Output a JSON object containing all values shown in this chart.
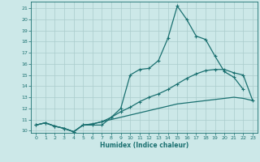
{
  "xlabel": "Humidex (Indice chaleur)",
  "ylabel": "",
  "background_color": "#cce8e8",
  "grid_color": "#aacccc",
  "line_color": "#1a7070",
  "xlim": [
    -0.5,
    23.5
  ],
  "ylim": [
    9.8,
    21.6
  ],
  "xticks": [
    0,
    1,
    2,
    3,
    4,
    5,
    6,
    7,
    8,
    9,
    10,
    11,
    12,
    13,
    14,
    15,
    16,
    17,
    18,
    19,
    20,
    21,
    22,
    23
  ],
  "yticks": [
    10,
    11,
    12,
    13,
    14,
    15,
    16,
    17,
    18,
    19,
    20,
    21
  ],
  "lines": [
    {
      "x": [
        0,
        1,
        2,
        3,
        4,
        5,
        6,
        7,
        8,
        9,
        10,
        11,
        12,
        13,
        14,
        15,
        16,
        17,
        18,
        19,
        20,
        21,
        22
      ],
      "y": [
        10.5,
        10.7,
        10.4,
        10.2,
        9.9,
        10.5,
        10.5,
        10.5,
        11.2,
        12.0,
        15.0,
        15.5,
        15.6,
        16.3,
        18.3,
        21.2,
        20.0,
        18.5,
        18.2,
        16.7,
        15.3,
        14.8,
        13.7
      ]
    },
    {
      "x": [
        0,
        1,
        2,
        3,
        4,
        5,
        6,
        7,
        8,
        9,
        10,
        11,
        12,
        13,
        14,
        15,
        16,
        17,
        18,
        19,
        20,
        21,
        22,
        23
      ],
      "y": [
        10.5,
        10.7,
        10.4,
        10.2,
        9.9,
        10.5,
        10.6,
        10.8,
        11.2,
        11.7,
        12.1,
        12.6,
        13.0,
        13.3,
        13.7,
        14.2,
        14.7,
        15.1,
        15.4,
        15.5,
        15.5,
        15.2,
        15.0,
        12.7
      ]
    },
    {
      "x": [
        0,
        1,
        2,
        3,
        4,
        5,
        6,
        7,
        8,
        9,
        10,
        11,
        12,
        13,
        14,
        15,
        16,
        17,
        18,
        19,
        20,
        21,
        22,
        23
      ],
      "y": [
        10.5,
        10.7,
        10.4,
        10.2,
        9.9,
        10.5,
        10.6,
        10.8,
        11.0,
        11.2,
        11.4,
        11.6,
        11.8,
        12.0,
        12.2,
        12.4,
        12.5,
        12.6,
        12.7,
        12.8,
        12.9,
        13.0,
        12.9,
        12.7
      ]
    }
  ],
  "has_markers": [
    true,
    true,
    false
  ]
}
